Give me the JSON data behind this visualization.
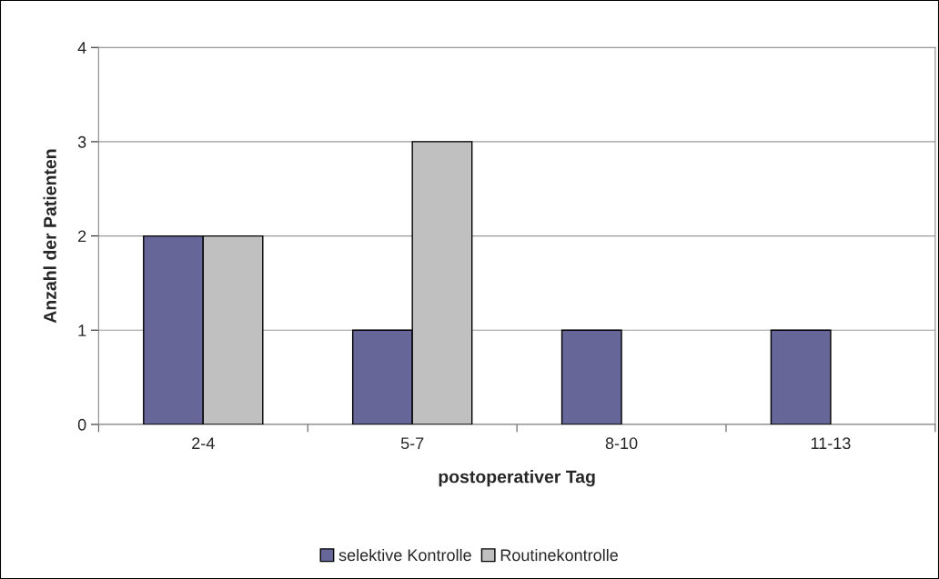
{
  "chart_data": {
    "type": "bar",
    "xlabel": "postoperativer Tag",
    "ylabel": "Anzahl der Patienten",
    "categories": [
      "2-4",
      "5-7",
      "8-10",
      "11-13"
    ],
    "series": [
      {
        "name": "selektive Kontrolle",
        "color": "#666699",
        "values": [
          2,
          1,
          1,
          1
        ]
      },
      {
        "name": "Routinekontrolle",
        "color": "#c0c0c0",
        "values": [
          2,
          3,
          0,
          0
        ]
      }
    ],
    "ylim": [
      0,
      4
    ],
    "yticks": [
      0,
      1,
      2,
      3,
      4
    ],
    "grid": "y",
    "legend": "bottom"
  }
}
